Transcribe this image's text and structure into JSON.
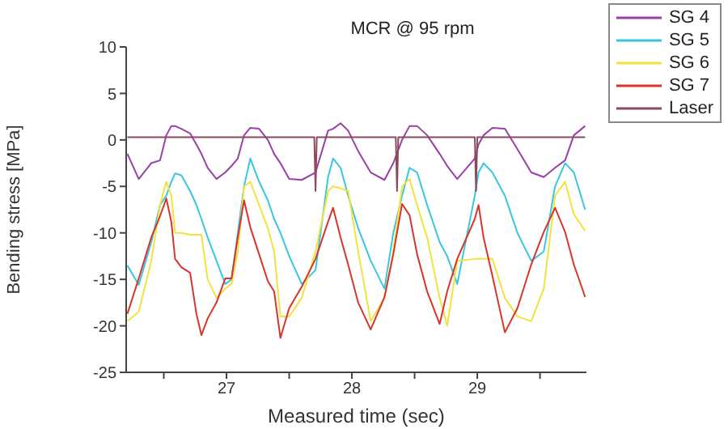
{
  "chart_data": {
    "type": "line",
    "title": "MCR @ 95 rpm",
    "xlabel": "Measured time (sec)",
    "ylabel": "Bending stress [MPa]",
    "x": [
      26.21,
      26.3,
      26.4,
      26.47,
      26.52,
      26.56,
      26.59,
      26.64,
      26.71,
      26.76,
      26.8,
      26.85,
      26.92,
      26.99,
      27.04,
      27.09,
      27.14,
      27.19,
      27.26,
      27.33,
      27.38,
      27.43,
      27.5,
      27.6,
      27.71,
      27.81,
      27.85,
      27.91,
      27.97,
      28.05,
      28.15,
      28.26,
      28.33,
      28.4,
      28.46,
      28.52,
      28.6,
      28.7,
      28.76,
      28.84,
      28.98,
      29.01,
      29.05,
      29.12,
      29.22,
      29.32,
      29.43,
      29.53,
      29.62,
      29.7,
      29.77,
      29.86
    ],
    "series": [
      {
        "name": "SG 4",
        "color": "#9b3fa8",
        "values": [
          -1.5,
          -4.2,
          -2.5,
          -2.2,
          0.5,
          1.5,
          1.5,
          1.2,
          0.7,
          -0.5,
          -1.5,
          -3,
          -4.2,
          -3.5,
          -2.8,
          -2,
          0.5,
          1.3,
          1.2,
          0,
          -1.5,
          -2.5,
          -4.2,
          -4.3,
          -3.5,
          1,
          1.2,
          1.8,
          1,
          -1.2,
          -3.5,
          -4.3,
          -2.5,
          0,
          1.5,
          1.5,
          0.5,
          -1.5,
          -2.8,
          -4.2,
          -2,
          -0.5,
          0.5,
          1.3,
          1.2,
          -1,
          -3.5,
          -4,
          -3,
          -2.2,
          0.5,
          1.5
        ]
      },
      {
        "name": "SG 5",
        "color": "#39c6e0",
        "values": [
          -13.5,
          -15.6,
          -11,
          -7,
          -6,
          -4.5,
          -3.6,
          -3.8,
          -5.5,
          -7,
          -8.5,
          -10.5,
          -13,
          -15.5,
          -15,
          -10,
          -5,
          -2,
          -4.5,
          -6.5,
          -8.5,
          -10,
          -12.5,
          -15.5,
          -14,
          -4,
          -2,
          -3,
          -6,
          -9.5,
          -13,
          -16,
          -10,
          -6,
          -3,
          -3.5,
          -7,
          -11,
          -12.5,
          -15.5,
          -6,
          -3.5,
          -2.5,
          -3.5,
          -6,
          -10,
          -13,
          -12,
          -5,
          -2.5,
          -3.5,
          -7.5
        ]
      },
      {
        "name": "SG 6",
        "color": "#f2e23c",
        "values": [
          -19.5,
          -18.5,
          -13,
          -7,
          -4.5,
          -6,
          -10,
          -10,
          -10.2,
          -10.2,
          -10.2,
          -15,
          -17,
          -16,
          -15.5,
          -12,
          -5,
          -4.5,
          -7,
          -9.5,
          -12,
          -19,
          -19,
          -17,
          -12,
          -5.5,
          -5,
          -5.2,
          -5.5,
          -12,
          -19.5,
          -17,
          -12,
          -5,
          -4.2,
          -7,
          -10.5,
          -17,
          -20,
          -13,
          -12.8,
          -12.8,
          -12.8,
          -12.8,
          -17,
          -19,
          -19.5,
          -16,
          -6,
          -4.5,
          -8,
          -9.8
        ]
      },
      {
        "name": "SG 7",
        "color": "#d9342b",
        "values": [
          -18.7,
          -14.9,
          -10.5,
          -8.2,
          -6.3,
          -8.8,
          -12.8,
          -13.7,
          -14.3,
          -18.7,
          -21,
          -19.2,
          -17.5,
          -14.9,
          -14.9,
          -10.5,
          -6.5,
          -9.4,
          -12.3,
          -15.2,
          -16.3,
          -21.3,
          -18.1,
          -15.8,
          -12.8,
          -8.8,
          -7.3,
          -10.5,
          -13.4,
          -17.5,
          -20.4,
          -16.9,
          -12.3,
          -6.9,
          -8.1,
          -12.3,
          -16.3,
          -19.8,
          -16.3,
          -12.8,
          -8.5,
          -7,
          -10.5,
          -14.6,
          -20.7,
          -18.1,
          -13.4,
          -9.9,
          -7.3,
          -9.9,
          -13.4,
          -16.9
        ]
      },
      {
        "name": "Laser",
        "color": "#8a4a5a",
        "x": [
          26.21,
          27.7,
          27.71,
          27.72,
          28.35,
          28.36,
          28.37,
          28.98,
          28.99,
          29.0,
          29.86
        ],
        "values": [
          0.3,
          0.3,
          -5.5,
          0.3,
          0.3,
          -5.5,
          0.3,
          0.3,
          -5.5,
          0.3,
          0.3
        ]
      }
    ],
    "xlim": [
      26.2,
      29.87
    ],
    "xticks": [
      {
        "value": 26.5,
        "label": null
      },
      27,
      {
        "value": 27.5,
        "label": null
      },
      28,
      {
        "value": 28.5,
        "label": null
      },
      29,
      {
        "value": 29.5,
        "label": null
      }
    ],
    "ylim": [
      -25,
      10
    ],
    "yticks": [
      -25,
      -20,
      -15,
      -10,
      -5,
      0,
      5,
      10
    ],
    "legend": "top right",
    "grid": false,
    "marker": "none",
    "line_style": "solid"
  }
}
